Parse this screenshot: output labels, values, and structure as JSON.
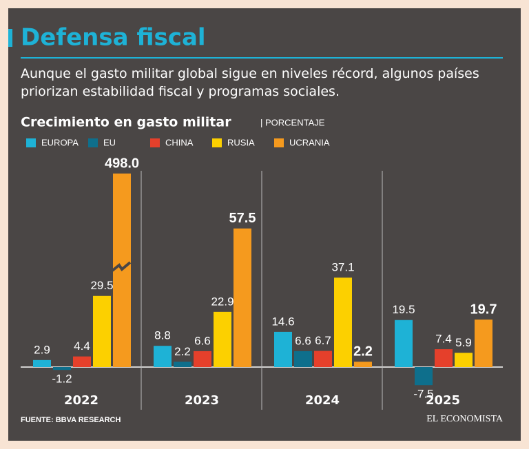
{
  "chart_data": {
    "type": "bar",
    "title": "Defensa fiscal",
    "subtitle": "Aunque el gasto militar global sigue en niveles récord, algunos países priorizan estabilidad fiscal y programas sociales.",
    "chart_title": "Crecimiento en gasto militar",
    "unit_label": "| PORCENTAJE",
    "categories": [
      "2022",
      "2023",
      "2024",
      "2025"
    ],
    "series": [
      {
        "name": "EUROPA",
        "color": "#1eb2d6",
        "values": [
          2.9,
          8.8,
          14.6,
          19.5
        ]
      },
      {
        "name": "EU",
        "color": "#0e6f8c",
        "values": [
          -1.2,
          2.2,
          6.6,
          -7.5
        ]
      },
      {
        "name": "CHINA",
        "color": "#e5402b",
        "values": [
          4.4,
          6.6,
          6.7,
          7.4
        ]
      },
      {
        "name": "RUSIA",
        "color": "#fcd000",
        "values": [
          29.5,
          22.9,
          37.1,
          5.9
        ]
      },
      {
        "name": "UCRANIA",
        "color": "#f59a1e",
        "values": [
          498,
          57.5,
          2.2,
          19.7
        ],
        "value_labels": [
          "498.0",
          "57.5",
          "2.2",
          "19.7"
        ]
      }
    ],
    "source": "FUENTE: BBVA RESEARCH",
    "brand": "EL ECONOMISTA"
  }
}
